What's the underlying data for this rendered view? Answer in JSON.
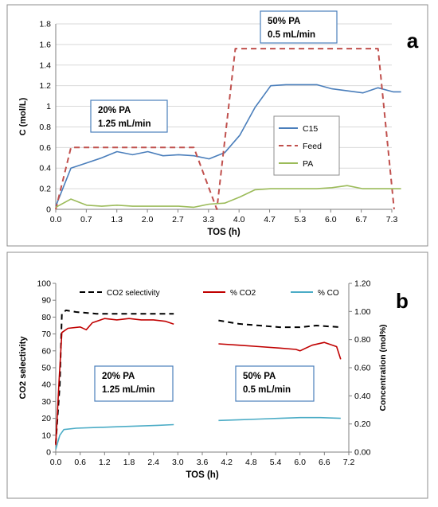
{
  "chart_data": [
    {
      "panel": "a",
      "type": "line",
      "xlabel": "TOS (h)",
      "ylabel": "C (mol/L)",
      "xlim": [
        0.0,
        7.3
      ],
      "ylim": [
        0,
        1.8
      ],
      "x_ticks": [
        "0.0",
        "0.7",
        "1.3",
        "2.0",
        "2.7",
        "3.3",
        "4.0",
        "4.7",
        "5.3",
        "6.0",
        "6.7",
        "7.3"
      ],
      "y_ticks": [
        "0",
        "0.2",
        "0.4",
        "0.6",
        "0.8",
        "1",
        "1.2",
        "1.4",
        "1.6",
        "1.8"
      ],
      "grid": "horizontal",
      "legend_position": "right-middle",
      "annotations": [
        {
          "lines": [
            "20% PA",
            "1.25 mL/min"
          ],
          "x": 0.8,
          "y": 0.76
        },
        {
          "lines": [
            "50% PA",
            "0.5 mL/min"
          ],
          "x": 4.5,
          "y": 1.61
        }
      ],
      "series": [
        {
          "name": "C15",
          "color": "#4a7ebb",
          "style": "solid",
          "points": [
            [
              0.0,
              0.03
            ],
            [
              0.33,
              0.4
            ],
            [
              0.67,
              0.45
            ],
            [
              1.0,
              0.5
            ],
            [
              1.33,
              0.56
            ],
            [
              1.67,
              0.53
            ],
            [
              2.0,
              0.56
            ],
            [
              2.33,
              0.52
            ],
            [
              2.67,
              0.53
            ],
            [
              3.0,
              0.52
            ],
            [
              3.33,
              0.49
            ],
            [
              3.67,
              0.55
            ],
            [
              4.0,
              0.72
            ],
            [
              4.33,
              0.99
            ],
            [
              4.67,
              1.2
            ],
            [
              5.0,
              1.21
            ],
            [
              5.33,
              1.21
            ],
            [
              5.67,
              1.21
            ],
            [
              6.0,
              1.17
            ],
            [
              6.33,
              1.15
            ],
            [
              6.67,
              1.13
            ],
            [
              7.0,
              1.18
            ],
            [
              7.33,
              1.14
            ],
            [
              7.5,
              1.14
            ]
          ]
        },
        {
          "name": "Feed",
          "color": "#c0504d",
          "style": "dashed",
          "points": [
            [
              0.0,
              0.0
            ],
            [
              0.33,
              0.6
            ],
            [
              3.0,
              0.6
            ],
            [
              3.5,
              0.0
            ],
            [
              3.9,
              1.56
            ],
            [
              7.0,
              1.56
            ],
            [
              7.35,
              0.0
            ]
          ]
        },
        {
          "name": "PA",
          "color": "#9bbb59",
          "style": "solid",
          "points": [
            [
              0.0,
              0.02
            ],
            [
              0.33,
              0.1
            ],
            [
              0.67,
              0.04
            ],
            [
              1.0,
              0.03
            ],
            [
              1.33,
              0.04
            ],
            [
              1.67,
              0.03
            ],
            [
              2.0,
              0.03
            ],
            [
              2.33,
              0.03
            ],
            [
              2.67,
              0.03
            ],
            [
              3.0,
              0.02
            ],
            [
              3.33,
              0.05
            ],
            [
              3.67,
              0.06
            ],
            [
              4.0,
              0.12
            ],
            [
              4.33,
              0.19
            ],
            [
              4.67,
              0.2
            ],
            [
              5.0,
              0.2
            ],
            [
              5.33,
              0.2
            ],
            [
              5.67,
              0.2
            ],
            [
              6.0,
              0.21
            ],
            [
              6.33,
              0.23
            ],
            [
              6.67,
              0.2
            ],
            [
              7.0,
              0.2
            ],
            [
              7.33,
              0.2
            ],
            [
              7.5,
              0.2
            ]
          ]
        }
      ]
    },
    {
      "panel": "b",
      "type": "line",
      "xlabel": "TOS (h)",
      "ylabel": "CO2 selectivity",
      "ylabel_right": "Concentration (mol%)",
      "xlim": [
        0.0,
        7.2
      ],
      "ylim": [
        0,
        100
      ],
      "ylim_right": [
        0,
        1.2
      ],
      "x_ticks": [
        "0.0",
        "0.6",
        "1.2",
        "1.8",
        "2.4",
        "3.0",
        "3.6",
        "4.2",
        "4.8",
        "5.4",
        "6.0",
        "6.6",
        "7.2"
      ],
      "y_ticks": [
        "0",
        "10",
        "20",
        "30",
        "40",
        "50",
        "60",
        "70",
        "80",
        "90",
        "100"
      ],
      "y_ticks_right": [
        "0.00",
        "0.20",
        "0.40",
        "0.60",
        "0.80",
        "1.00",
        "1.20"
      ],
      "grid": "none",
      "legend_position": "top",
      "annotations": [
        {
          "lines": [
            "20% PA",
            "1.25 mL/min"
          ],
          "x": 0.9,
          "y": 46
        },
        {
          "lines": [
            "50% PA",
            "0.5 mL/min"
          ],
          "x": 4.9,
          "y": 46
        }
      ],
      "series": [
        {
          "name": "CO2 selectivity",
          "legend_label": "CO2 selectivity",
          "color": "#000000",
          "style": "dashed",
          "axis": "left",
          "points": [
            [
              0.0,
              5
            ],
            [
              0.1,
              40
            ],
            [
              0.15,
              82
            ],
            [
              0.25,
              84
            ],
            [
              0.5,
              83
            ],
            [
              1.0,
              82
            ],
            [
              1.5,
              82
            ],
            [
              2.0,
              82
            ],
            [
              2.5,
              82
            ],
            [
              2.9,
              82
            ]
          ]
        },
        {
          "name": "CO2 selectivity",
          "color": "#000000",
          "style": "dashed",
          "axis": "left",
          "points": [
            [
              4.0,
              78
            ],
            [
              4.5,
              76
            ],
            [
              5.0,
              75
            ],
            [
              5.5,
              74
            ],
            [
              6.0,
              74
            ],
            [
              6.4,
              75
            ],
            [
              7.0,
              74
            ]
          ]
        },
        {
          "name": "% CO2",
          "legend_label": "% CO2",
          "color": "#c00000",
          "style": "solid",
          "axis": "right",
          "points": [
            [
              0.0,
              0.05
            ],
            [
              0.08,
              0.5
            ],
            [
              0.15,
              0.85
            ],
            [
              0.3,
              0.88
            ],
            [
              0.6,
              0.89
            ],
            [
              0.75,
              0.87
            ],
            [
              0.9,
              0.92
            ],
            [
              1.2,
              0.95
            ],
            [
              1.5,
              0.94
            ],
            [
              1.8,
              0.95
            ],
            [
              2.1,
              0.94
            ],
            [
              2.4,
              0.94
            ],
            [
              2.7,
              0.93
            ],
            [
              2.9,
              0.91
            ]
          ]
        },
        {
          "name": "% CO2",
          "color": "#c00000",
          "style": "solid",
          "axis": "right",
          "points": [
            [
              4.0,
              0.77
            ],
            [
              4.5,
              0.76
            ],
            [
              5.0,
              0.75
            ],
            [
              5.5,
              0.74
            ],
            [
              5.9,
              0.73
            ],
            [
              6.0,
              0.72
            ],
            [
              6.3,
              0.76
            ],
            [
              6.6,
              0.78
            ],
            [
              6.9,
              0.75
            ],
            [
              7.0,
              0.66
            ]
          ]
        },
        {
          "name": "% CO",
          "legend_label": "% CO",
          "color": "#4bacc6",
          "style": "solid",
          "axis": "right",
          "points": [
            [
              0.0,
              0.02
            ],
            [
              0.1,
              0.12
            ],
            [
              0.2,
              0.16
            ],
            [
              0.5,
              0.17
            ],
            [
              1.0,
              0.175
            ],
            [
              1.5,
              0.18
            ],
            [
              2.0,
              0.185
            ],
            [
              2.5,
              0.19
            ],
            [
              2.9,
              0.195
            ]
          ]
        },
        {
          "name": "% CO",
          "color": "#4bacc6",
          "style": "solid",
          "axis": "right",
          "points": [
            [
              4.0,
              0.225
            ],
            [
              4.5,
              0.23
            ],
            [
              5.0,
              0.235
            ],
            [
              5.5,
              0.24
            ],
            [
              6.0,
              0.245
            ],
            [
              6.5,
              0.245
            ],
            [
              7.0,
              0.24
            ]
          ]
        }
      ]
    }
  ],
  "panel_labels": [
    "a",
    "b"
  ]
}
